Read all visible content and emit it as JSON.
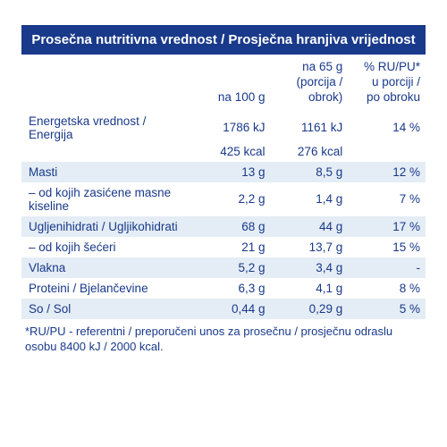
{
  "title": "Prosečna nutritivna vrednost / Prosječna hranjiva vrijednost",
  "columns": {
    "c1": "na 100 g",
    "c2_line1": "na 65 g",
    "c2_line2": "(porcija / obrok)",
    "c3_line1": "% RU/PU*",
    "c3_line2": "u porciji /",
    "c3_line3": "po obroku"
  },
  "rows": {
    "energy": {
      "label": "Energetska vrednost / Energija",
      "v1": "1786 kJ",
      "v2": "1161 kJ",
      "v3": "14 %"
    },
    "energy2": {
      "v1": "425 kcal",
      "v2": "276 kcal"
    },
    "fat": {
      "label": "Masti",
      "v1": "13 g",
      "v2": "8,5 g",
      "v3": "12 %"
    },
    "satfat": {
      "label": "– od kojih zasićene masne kiseline",
      "v1": "2,2 g",
      "v2": "1,4 g",
      "v3": "7 %"
    },
    "carbs": {
      "label": "Ugljenihidrati / Ugljikohidrati",
      "v1": "68 g",
      "v2": "44 g",
      "v3": "17 %"
    },
    "sugars": {
      "label": "– od kojih šećeri",
      "v1": "21 g",
      "v2": "13,7 g",
      "v3": "15 %"
    },
    "fiber": {
      "label": "Vlakna",
      "v1": "5,2 g",
      "v2": "3,4 g",
      "v3": "-"
    },
    "protein": {
      "label": "Proteini / Bjelančevine",
      "v1": "6,3 g",
      "v2": "4,1 g",
      "v3": "8 %"
    },
    "salt": {
      "label": "So / Sol",
      "v1": "0,44 g",
      "v2": "0,29 g",
      "v3": "5 %"
    }
  },
  "footnote": "*RU/PU - referentni / preporučeni unos za prosečnu / prosječnu odraslu osobu 8400 kJ / 2000 kcal.",
  "colors": {
    "header_bg": "#19398a",
    "header_fg": "#ffffff",
    "text": "#19398a",
    "row_alt": "#e4edf5",
    "bg": "#ffffff"
  },
  "type": "table"
}
